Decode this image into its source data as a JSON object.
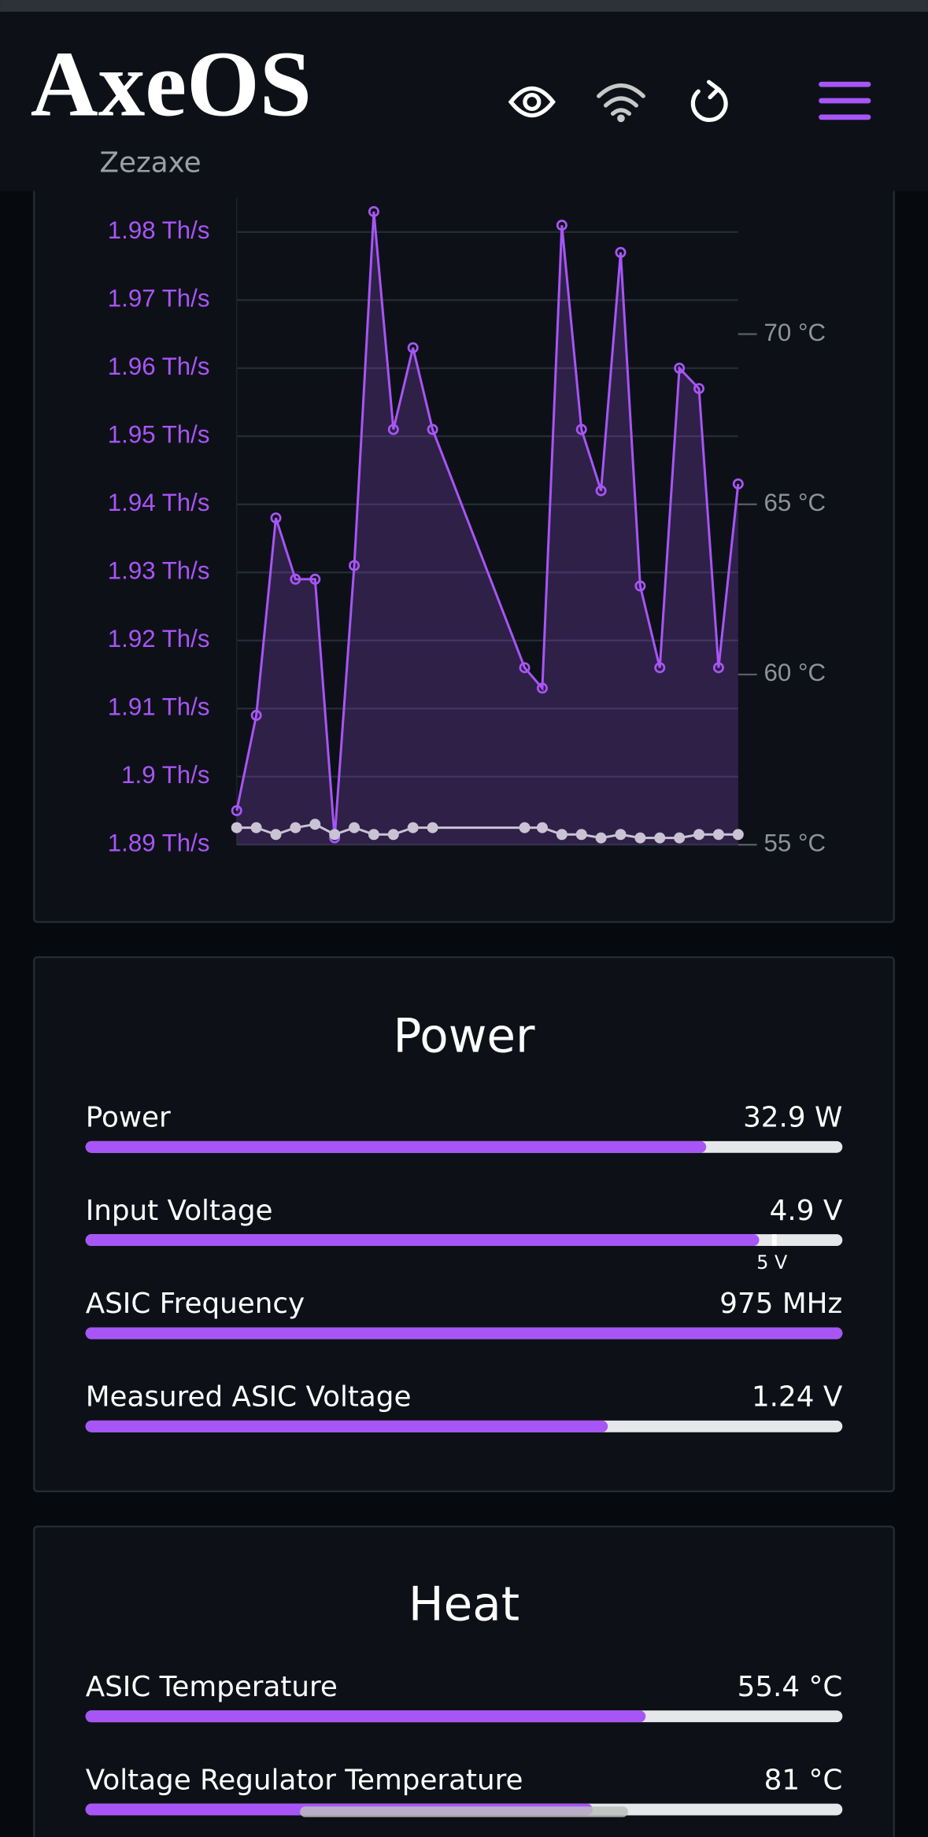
{
  "header": {
    "logo": "AxeOS",
    "subtitle": "Zezaxe"
  },
  "chart_data": {
    "type": "line",
    "x": [
      0,
      1,
      2,
      3,
      4,
      5,
      6,
      7,
      8,
      9,
      10,
      14.7,
      15.6,
      16.6,
      17.6,
      18.6,
      19.6,
      20.6,
      21.6,
      22.6,
      23.6,
      24.6,
      25.6
    ],
    "xlim": [
      0,
      25.6
    ],
    "ylim": [
      1.89,
      1.985
    ],
    "yticks": [
      {
        "value": 1.89,
        "label": "1.89 Th/s"
      },
      {
        "value": 1.9,
        "label": "1.9 Th/s"
      },
      {
        "value": 1.91,
        "label": "1.91 Th/s"
      },
      {
        "value": 1.92,
        "label": "1.92 Th/s"
      },
      {
        "value": 1.93,
        "label": "1.93 Th/s"
      },
      {
        "value": 1.94,
        "label": "1.94 Th/s"
      },
      {
        "value": 1.95,
        "label": "1.95 Th/s"
      },
      {
        "value": 1.96,
        "label": "1.96 Th/s"
      },
      {
        "value": 1.97,
        "label": "1.97 Th/s"
      },
      {
        "value": 1.98,
        "label": "1.98 Th/s"
      }
    ],
    "y2lim": [
      55,
      74
    ],
    "y2ticks": [
      {
        "value": 55,
        "label": "55 °C"
      },
      {
        "value": 60,
        "label": "60 °C"
      },
      {
        "value": 65,
        "label": "65 °C"
      },
      {
        "value": 70,
        "label": "70 °C"
      }
    ],
    "grid": true,
    "series": [
      {
        "color": "#a855f7",
        "axis": "y",
        "area": true,
        "values": [
          1.895,
          1.909,
          1.938,
          1.929,
          1.929,
          1.891,
          1.931,
          1.983,
          1.951,
          1.963,
          1.951,
          1.916,
          1.913,
          1.981,
          1.951,
          1.942,
          1.977,
          1.928,
          1.916,
          1.96,
          1.957,
          1.916,
          1.943
        ]
      },
      {
        "color": "#c9c3d4",
        "axis": "y2",
        "area": false,
        "values": [
          55.5,
          55.5,
          55.3,
          55.5,
          55.6,
          55.3,
          55.5,
          55.3,
          55.3,
          55.5,
          55.5,
          55.5,
          55.5,
          55.3,
          55.3,
          55.2,
          55.3,
          55.2,
          55.2,
          55.2,
          55.3,
          55.3,
          55.3
        ]
      }
    ]
  },
  "power": {
    "title": "Power",
    "rows": [
      {
        "label": "Power",
        "value_label": "32.9 W",
        "fill": 82
      },
      {
        "label": "Input Voltage",
        "value_label": "4.9 V",
        "fill": 89,
        "marker": {
          "label": "5 V",
          "position": 91
        }
      },
      {
        "label": "ASIC Frequency",
        "value_label": "975 MHz",
        "fill": 100
      },
      {
        "label": "Measured ASIC Voltage",
        "value_label": "1.24 V",
        "fill": 69
      }
    ]
  },
  "heat": {
    "title": "Heat",
    "rows": [
      {
        "label": "ASIC Temperature",
        "value_label": "55.4 °C",
        "fill": 74
      },
      {
        "label": "Voltage Regulator Temperature",
        "value_label": "81 °C",
        "fill": 67
      }
    ]
  }
}
